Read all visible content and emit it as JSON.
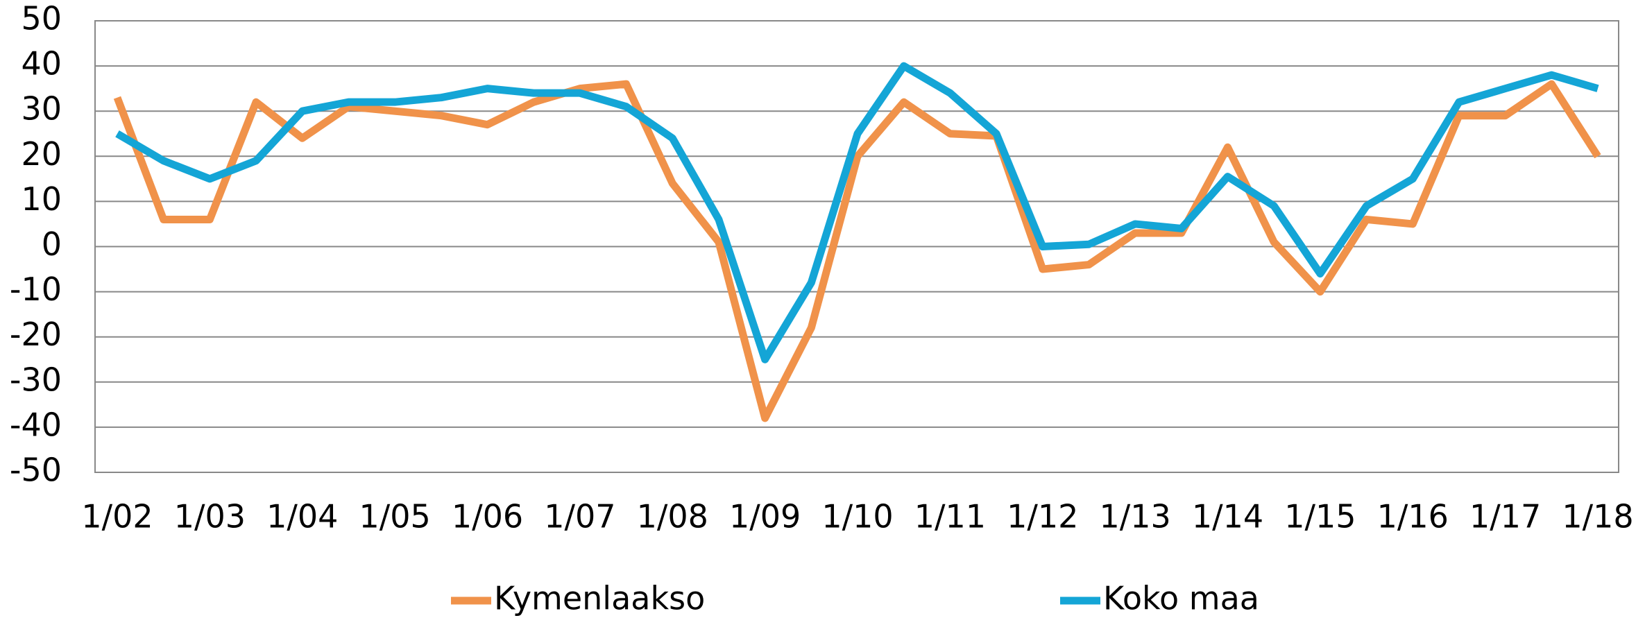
{
  "chart_data": {
    "type": "line",
    "categories": [
      "1/02",
      null,
      "1/03",
      null,
      "1/04",
      null,
      "1/05",
      null,
      "1/06",
      null,
      "1/07",
      null,
      "1/08",
      null,
      "1/09",
      null,
      "1/10",
      null,
      "1/11",
      null,
      "1/12",
      null,
      "1/13",
      null,
      "1/14",
      null,
      "1/15",
      null,
      "1/16",
      null,
      "1/17",
      null,
      "1/18"
    ],
    "series": [
      {
        "name": "Kymenlaakso",
        "color": "#f0924a",
        "values": [
          33,
          6,
          6,
          32,
          24,
          31,
          30,
          29,
          27,
          32,
          35,
          36,
          14,
          1,
          -38,
          -18,
          20,
          32,
          25,
          24.5,
          -5,
          -4,
          3,
          3,
          22,
          1,
          -10,
          6,
          5,
          29,
          29,
          36,
          20
        ]
      },
      {
        "name": "Koko maa",
        "color": "#14a5d6",
        "values": [
          25,
          19,
          15,
          19,
          30,
          32,
          32,
          33,
          35,
          34,
          34,
          31,
          24,
          6,
          -25,
          -8,
          25,
          40,
          34,
          25,
          0,
          0.5,
          5,
          4,
          15.5,
          9,
          -6,
          9,
          15,
          32,
          35,
          38,
          35
        ]
      }
    ],
    "ylim": [
      -50,
      50
    ],
    "yticks": [
      -50,
      -40,
      -30,
      -20,
      -10,
      0,
      10,
      20,
      30,
      40,
      50
    ],
    "grid": true,
    "legend": "bottom"
  }
}
